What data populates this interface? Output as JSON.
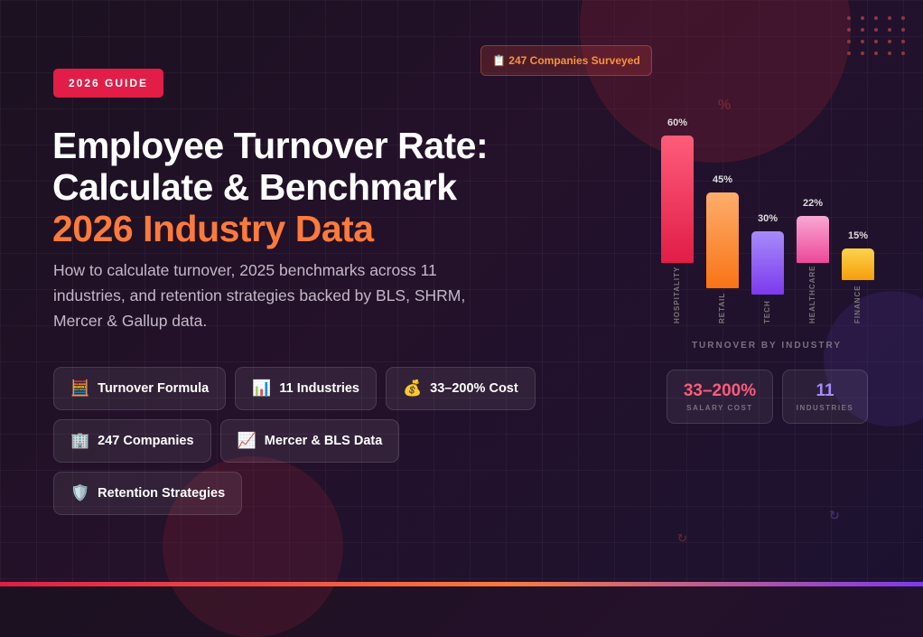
{
  "badge": "2026 GUIDE",
  "survey": {
    "icon": "📋",
    "label": "247 Companies Surveyed"
  },
  "title": {
    "line1": "Employee Turnover Rate:",
    "line2": "Calculate & Benchmark",
    "line3": "2026 Industry Data"
  },
  "subtitle": "How to calculate turnover, 2025 benchmarks across 11 industries, and retention strategies backed by BLS, SHRM, Mercer & Gallup data.",
  "pills": [
    {
      "icon": "🧮",
      "label": "Turnover Formula"
    },
    {
      "icon": "📊",
      "label": "11 Industries"
    },
    {
      "icon": "💰",
      "label": "33–200% Cost"
    },
    {
      "icon": "🏢",
      "label": "247 Companies"
    },
    {
      "icon": "📈",
      "label": "Mercer & BLS Data"
    },
    {
      "icon": "🛡️",
      "label": "Retention Strategies"
    }
  ],
  "chart_data": {
    "type": "bar",
    "title": "TURNOVER BY INDUSTRY",
    "categories": [
      "HOSPITALITY",
      "RETAIL",
      "TECH",
      "HEALTHCARE",
      "FINANCE"
    ],
    "values": [
      60,
      45,
      30,
      22,
      15
    ],
    "labels": [
      "60%",
      "45%",
      "30%",
      "22%",
      "15%"
    ],
    "colors": [
      [
        "#ff5c7a",
        "#e11d48"
      ],
      [
        "#fdae6b",
        "#f97316"
      ],
      [
        "#a78bfa",
        "#7c3aed"
      ],
      [
        "#f9a8d4",
        "#ec4899"
      ],
      [
        "#fcd34d",
        "#f59e0b"
      ]
    ]
  },
  "stats": [
    {
      "value": "33–200%",
      "label": "SALARY COST",
      "color": "#fb5c7a"
    },
    {
      "value": "11",
      "label": "INDUSTRIES",
      "color": "#a78bfa"
    }
  ]
}
